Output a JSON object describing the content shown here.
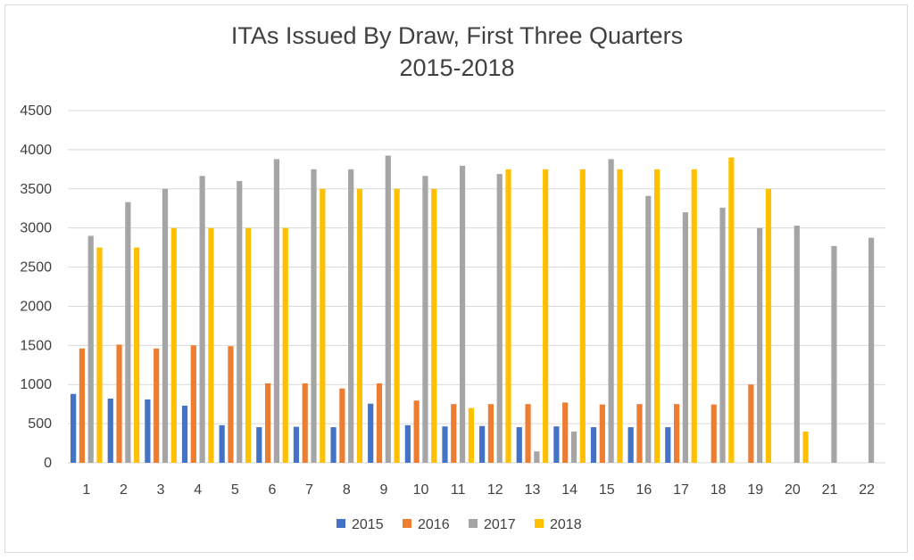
{
  "chart_data": {
    "type": "bar",
    "title_line1": "ITAs Issued By Draw, First Three Quarters",
    "title_line2": "2015-2018",
    "categories": [
      "1",
      "2",
      "3",
      "4",
      "5",
      "6",
      "7",
      "8",
      "9",
      "10",
      "11",
      "12",
      "13",
      "14",
      "15",
      "16",
      "17",
      "18",
      "19",
      "20",
      "21",
      "22"
    ],
    "ylim": [
      0,
      4500
    ],
    "yticks": [
      0,
      500,
      1000,
      1500,
      2000,
      2500,
      3000,
      3500,
      4000,
      4500
    ],
    "grid": true,
    "legend_position": "bottom",
    "series": [
      {
        "name": "2015",
        "color": "#4472c4",
        "values": [
          880,
          820,
          810,
          730,
          480,
          455,
          460,
          455,
          755,
          480,
          465,
          470,
          455,
          465,
          455,
          455,
          455,
          null,
          null,
          null,
          null,
          null
        ]
      },
      {
        "name": "2016",
        "color": "#ed7d31",
        "values": [
          1460,
          1510,
          1460,
          1500,
          1490,
          1015,
          1015,
          950,
          1015,
          795,
          750,
          750,
          750,
          770,
          745,
          750,
          750,
          745,
          1000,
          null,
          null,
          null
        ]
      },
      {
        "name": "2017",
        "color": "#a5a5a5",
        "values": [
          2900,
          3330,
          3500,
          3665,
          3600,
          3880,
          3750,
          3750,
          3925,
          3665,
          3795,
          3690,
          145,
          400,
          3880,
          3410,
          3200,
          3260,
          3000,
          3030,
          2770,
          2875
        ]
      },
      {
        "name": "2018",
        "color": "#ffc000",
        "values": [
          2750,
          2750,
          3000,
          3000,
          3000,
          3000,
          3500,
          3500,
          3500,
          3500,
          700,
          3750,
          3750,
          3750,
          3750,
          3750,
          3750,
          3900,
          3500,
          400,
          null,
          null
        ]
      }
    ]
  }
}
